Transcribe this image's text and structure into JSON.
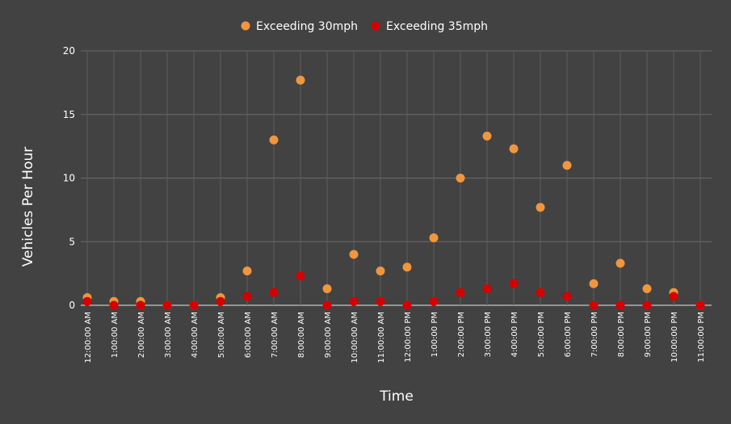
{
  "chart_data": {
    "type": "scatter",
    "xlabel": "Time",
    "ylabel": "Vehicles Per Hour",
    "ylim": [
      0,
      20
    ],
    "yticks": [
      0,
      5,
      10,
      15,
      20
    ],
    "grid": true,
    "legend_position": "top",
    "categories": [
      "12:00:00 AM",
      "1:00:00 AM",
      "2:00:00 AM",
      "3:00:00 AM",
      "4:00:00 AM",
      "5:00:00 AM",
      "6:00:00 AM",
      "7:00:00 AM",
      "8:00:00 AM",
      "9:00:00 AM",
      "10:00:00 AM",
      "11:00:00 AM",
      "12:00:00 PM",
      "1:00:00 PM",
      "2:00:00 PM",
      "3:00:00 PM",
      "4:00:00 PM",
      "5:00:00 PM",
      "6:00:00 PM",
      "7:00:00 PM",
      "8:00:00 PM",
      "9:00:00 PM",
      "10:00:00 PM",
      "11:00:00 PM"
    ],
    "series": [
      {
        "name": "Exceeding 30mph",
        "color": "#f0963c",
        "values": [
          0.6,
          0.3,
          0.3,
          0,
          0,
          0.6,
          2.7,
          13,
          17.7,
          1.3,
          4,
          2.7,
          3,
          5.3,
          10,
          13.3,
          12.3,
          7.7,
          11,
          1.7,
          3.3,
          1.3,
          1,
          0
        ]
      },
      {
        "name": "Exceeding 35mph",
        "color": "#d40000",
        "values": [
          0.3,
          0,
          0,
          0,
          0,
          0.3,
          0.7,
          1,
          2.3,
          0,
          0.3,
          0.3,
          0,
          0.3,
          1,
          1.3,
          1.7,
          1,
          0.7,
          0,
          0,
          0,
          0.7,
          0
        ]
      }
    ]
  }
}
